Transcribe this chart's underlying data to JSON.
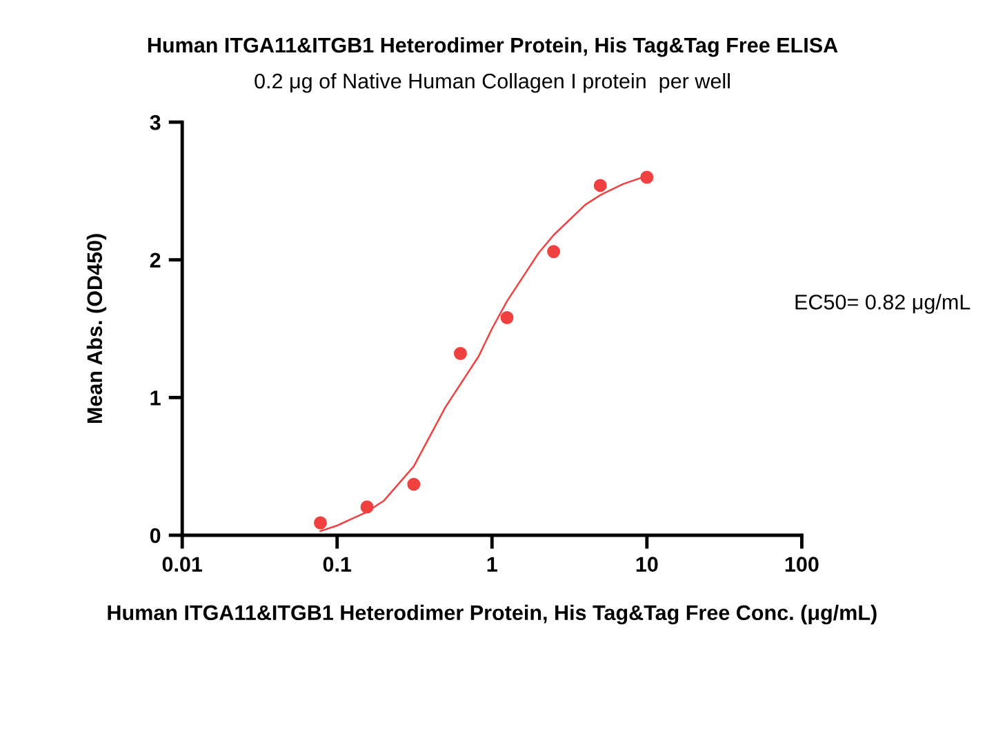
{
  "chart_data": {
    "type": "scatter",
    "title": "Human ITGA11&ITGB1 Heterodimer Protein, His Tag&Tag Free ELISA",
    "subtitle": "0.2 μg of Native Human Collagen I protein  per well",
    "xlabel": "Human ITGA11&ITGB1 Heterodimer Protein, His Tag&Tag Free Conc. (μg/mL)",
    "ylabel": "Mean Abs. (OD450)",
    "log": "x",
    "xlim": [
      0.01,
      100
    ],
    "xticks": [
      {
        "value": 0.01,
        "label": "0.01"
      },
      {
        "value": 0.1,
        "label": "0.1"
      },
      {
        "value": 1,
        "label": "1"
      },
      {
        "value": 10,
        "label": "10"
      },
      {
        "value": 100,
        "label": "100"
      }
    ],
    "ylim": [
      0,
      3
    ],
    "yticks": [
      0,
      1,
      2,
      3
    ],
    "grid": false,
    "legend": false,
    "marker": "circle",
    "x": [
      0.078,
      0.156,
      0.3125,
      0.625,
      1.25,
      2.5,
      5,
      10
    ],
    "series": [
      {
        "color": "#f04040",
        "values": [
          0.09,
          0.205,
          0.37,
          1.32,
          1.58,
          2.06,
          2.54,
          2.6
        ]
      },
      {
        "type": "line",
        "color": "#f04040",
        "marker": "none",
        "line_style": "solid",
        "x": [
          0.078,
          0.1,
          0.156,
          0.2,
          0.3125,
          0.5,
          0.82,
          1.0,
          1.25,
          2,
          2.5,
          4,
          5,
          7,
          10
        ],
        "values": [
          0.03,
          0.07,
          0.17,
          0.25,
          0.5,
          0.93,
          1.3,
          1.5,
          1.7,
          2.05,
          2.18,
          2.4,
          2.47,
          2.55,
          2.61
        ]
      }
    ],
    "annotations": [
      "EC50= 0.82 μg/mL"
    ]
  }
}
